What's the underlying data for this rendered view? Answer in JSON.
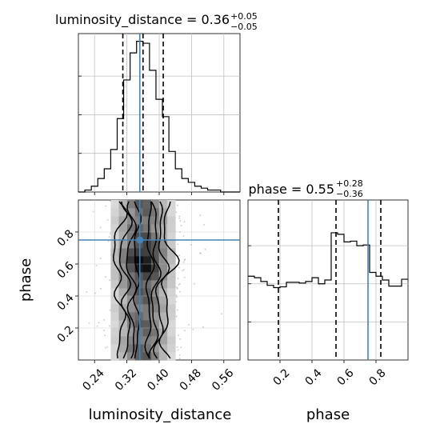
{
  "chart_data": {
    "type": "corner",
    "parameters": [
      "luminosity_distance",
      "phase"
    ],
    "truth": {
      "luminosity_distance": 0.352,
      "phase": 0.75
    },
    "panels": [
      {
        "name": "luminosity_distance-marginal",
        "type": "histogram",
        "title": {
          "label": "luminosity_distance = 0.36",
          "sup": "+0.05",
          "sub": "−0.05"
        },
        "median": 0.36,
        "quantiles": [
          0.31,
          0.36,
          0.41
        ],
        "xlim": [
          0.2,
          0.6
        ],
        "bins": [
          0.2,
          0.216,
          0.232,
          0.248,
          0.264,
          0.28,
          0.296,
          0.312,
          0.328,
          0.344,
          0.36,
          0.376,
          0.392,
          0.408,
          0.424,
          0.44,
          0.456,
          0.472,
          0.488,
          0.504,
          0.52,
          0.536,
          0.552,
          0.568,
          0.584,
          0.6
        ],
        "heights": [
          0,
          1,
          3,
          7,
          12,
          22,
          38,
          58,
          72,
          78,
          77,
          63,
          48,
          39,
          21,
          12,
          7,
          5,
          3,
          2,
          1,
          1,
          0,
          0,
          0
        ],
        "ymax": 82
      },
      {
        "name": "phase-marginal",
        "type": "histogram",
        "title": {
          "label": "phase = 0.55",
          "sup": "+0.28",
          "sub": "−0.36"
        },
        "median": 0.55,
        "quantiles": [
          0.19,
          0.55,
          0.83
        ],
        "xlim": [
          0.0,
          1.0
        ],
        "bins": [
          0.0,
          0.04,
          0.08,
          0.12,
          0.16,
          0.2,
          0.24,
          0.28,
          0.32,
          0.36,
          0.4,
          0.44,
          0.48,
          0.52,
          0.56,
          0.6,
          0.64,
          0.68,
          0.72,
          0.76,
          0.8,
          0.84,
          0.88,
          0.92,
          0.96,
          1.0
        ],
        "heights": [
          110,
          108,
          103,
          98,
          95,
          96,
          102,
          102,
          101,
          103,
          108,
          100,
          105,
          167,
          165,
          155,
          156,
          150,
          151,
          115,
          110,
          105,
          97,
          97,
          106
        ],
        "ymax": 210
      }
    ],
    "joint": {
      "name": "luminosity_distance-vs-phase",
      "xlabel": "luminosity_distance",
      "ylabel": "phase",
      "xlim": [
        0.2,
        0.6
      ],
      "ylim": [
        0.0,
        1.0
      ],
      "xticks": [
        "0.24",
        "0.32",
        "0.40",
        "0.48",
        "0.56"
      ],
      "yticks": [
        "0.2",
        "0.4",
        "0.6",
        "0.8"
      ],
      "phase_xticks": [
        "0.2",
        "0.4",
        "0.6",
        "0.8"
      ]
    },
    "colors": {
      "truth": "#4682b4",
      "contour": "#000000",
      "hist": "#000000",
      "grid": "#c0c0c0",
      "scatter": "#555555"
    }
  }
}
